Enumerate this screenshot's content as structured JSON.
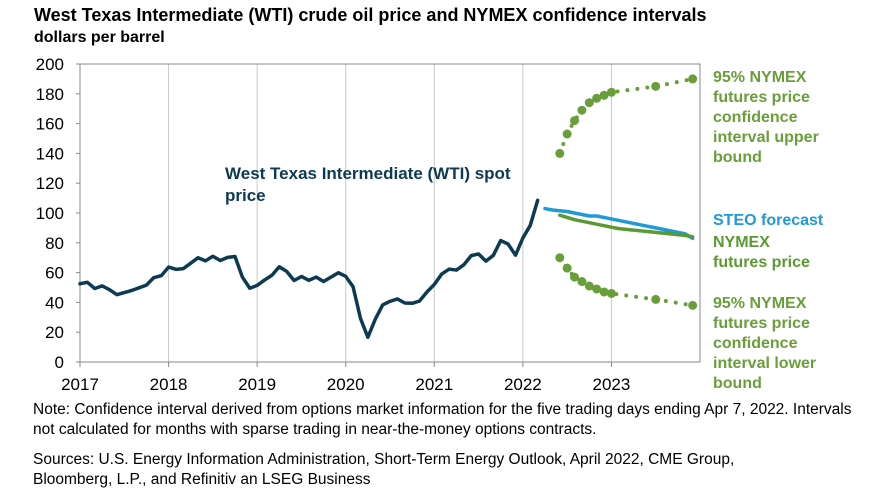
{
  "chart_data": {
    "type": "line",
    "title": "West Texas Intermediate (WTI) crude oil price and NYMEX confidence intervals",
    "subtitle": "dollars per barrel",
    "note": "Note: Confidence interval derived from options market information for the five trading days ending Apr 7, 2022. Intervals not calculated for months with sparse trading in near-the-money options contracts.",
    "sources": "Sources: U.S. Energy Information Administration, Short-Term Energy Outlook, April 2022, CME Group, Bloomberg, L.P., and Refinitiv an LSEG Business",
    "xlim": [
      2017,
      2024
    ],
    "xticks": [
      2017,
      2018,
      2019,
      2020,
      2021,
      2022,
      2023
    ],
    "ylim": [
      0,
      200
    ],
    "yticks": [
      0,
      20,
      40,
      60,
      80,
      100,
      120,
      140,
      160,
      180,
      200
    ],
    "grid": "x",
    "series": [
      {
        "name": "West Texas Intermediate (WTI) spot price",
        "color": "#0d3a52",
        "line_style": "solid",
        "markers": false,
        "x": [
          2017,
          2017.083,
          2017.167,
          2017.25,
          2017.333,
          2017.417,
          2017.5,
          2017.583,
          2017.667,
          2017.75,
          2017.833,
          2017.917,
          2018,
          2018.083,
          2018.167,
          2018.25,
          2018.333,
          2018.417,
          2018.5,
          2018.583,
          2018.667,
          2018.75,
          2018.833,
          2018.917,
          2019,
          2019.083,
          2019.167,
          2019.25,
          2019.333,
          2019.417,
          2019.5,
          2019.583,
          2019.667,
          2019.75,
          2019.833,
          2019.917,
          2020,
          2020.083,
          2020.167,
          2020.25,
          2020.333,
          2020.417,
          2020.5,
          2020.583,
          2020.667,
          2020.75,
          2020.833,
          2020.917,
          2021,
          2021.083,
          2021.167,
          2021.25,
          2021.333,
          2021.417,
          2021.5,
          2021.583,
          2021.667,
          2021.75,
          2021.833,
          2021.917,
          2022,
          2022.083,
          2022.167
        ],
        "values": [
          52.5,
          53.5,
          49.3,
          51.1,
          48.5,
          45.2,
          46.6,
          48,
          49.8,
          51.6,
          56.6,
          57.9,
          63.7,
          62.2,
          62.7,
          66.3,
          70,
          67.9,
          71,
          68.1,
          70.2,
          70.8,
          57,
          49.5,
          51.4,
          55,
          58.2,
          63.9,
          60.8,
          54.7,
          57.4,
          54.8,
          57,
          54,
          57,
          59.9,
          57.5,
          50.5,
          29.2,
          16.6,
          28.6,
          38.3,
          40.7,
          42.3,
          39.6,
          39.4,
          40.9,
          47,
          52,
          59,
          62.3,
          61.7,
          65.2,
          71.4,
          72.5,
          67.7,
          71.6,
          81.5,
          79.2,
          71.7,
          83.2,
          91.6,
          108.5
        ]
      },
      {
        "name": "STEO forecast",
        "color": "#1f9ad6",
        "line_style": "solid",
        "markers": false,
        "x": [
          2022.25,
          2022.333,
          2022.417,
          2022.5,
          2022.583,
          2022.667,
          2022.75,
          2022.833,
          2022.917,
          2023,
          2023.083,
          2023.167,
          2023.25,
          2023.333,
          2023.417,
          2023.5,
          2023.583,
          2023.667,
          2023.75,
          2023.833,
          2023.917
        ],
        "values": [
          103,
          102,
          101.5,
          101,
          100,
          99,
          98,
          98,
          97,
          96,
          95,
          94,
          93,
          92,
          91,
          90,
          89,
          88,
          87,
          86,
          83
        ]
      },
      {
        "name": "NYMEX futures price",
        "color": "#5b9a32",
        "line_style": "solid",
        "markers": false,
        "x": [
          2022.417,
          2022.5,
          2022.583,
          2022.667,
          2022.75,
          2022.833,
          2022.917,
          2023,
          2023.083,
          2023.167,
          2023.25,
          2023.333,
          2023.417,
          2023.5,
          2023.583,
          2023.667,
          2023.75,
          2023.833,
          2023.917
        ],
        "values": [
          98.5,
          97,
          95.5,
          94.5,
          93.5,
          92.5,
          91.5,
          90.5,
          89.5,
          89,
          88.5,
          88,
          87.5,
          87,
          86.5,
          86,
          85.5,
          85,
          84
        ]
      },
      {
        "name": "95% NYMEX futures price confidence interval upper bound",
        "color": "#6a9e3a",
        "line_style": "dotted",
        "markers": true,
        "x": [
          2022.417,
          2022.5,
          2022.583,
          2022.667,
          2022.75,
          2022.833,
          2022.917,
          2023,
          2023.5,
          2023.917
        ],
        "values": [
          140,
          153,
          162,
          169,
          174,
          177,
          179,
          181,
          185,
          190
        ]
      },
      {
        "name": "95% NYMEX futures price confidence interval lower bound",
        "color": "#6a9e3a",
        "line_style": "dotted",
        "markers": true,
        "x": [
          2022.417,
          2022.5,
          2022.583,
          2022.667,
          2022.75,
          2022.833,
          2022.917,
          2023,
          2023.5,
          2023.917
        ],
        "values": [
          70,
          63,
          57,
          54,
          51,
          49,
          47,
          46,
          42,
          38
        ]
      }
    ]
  }
}
